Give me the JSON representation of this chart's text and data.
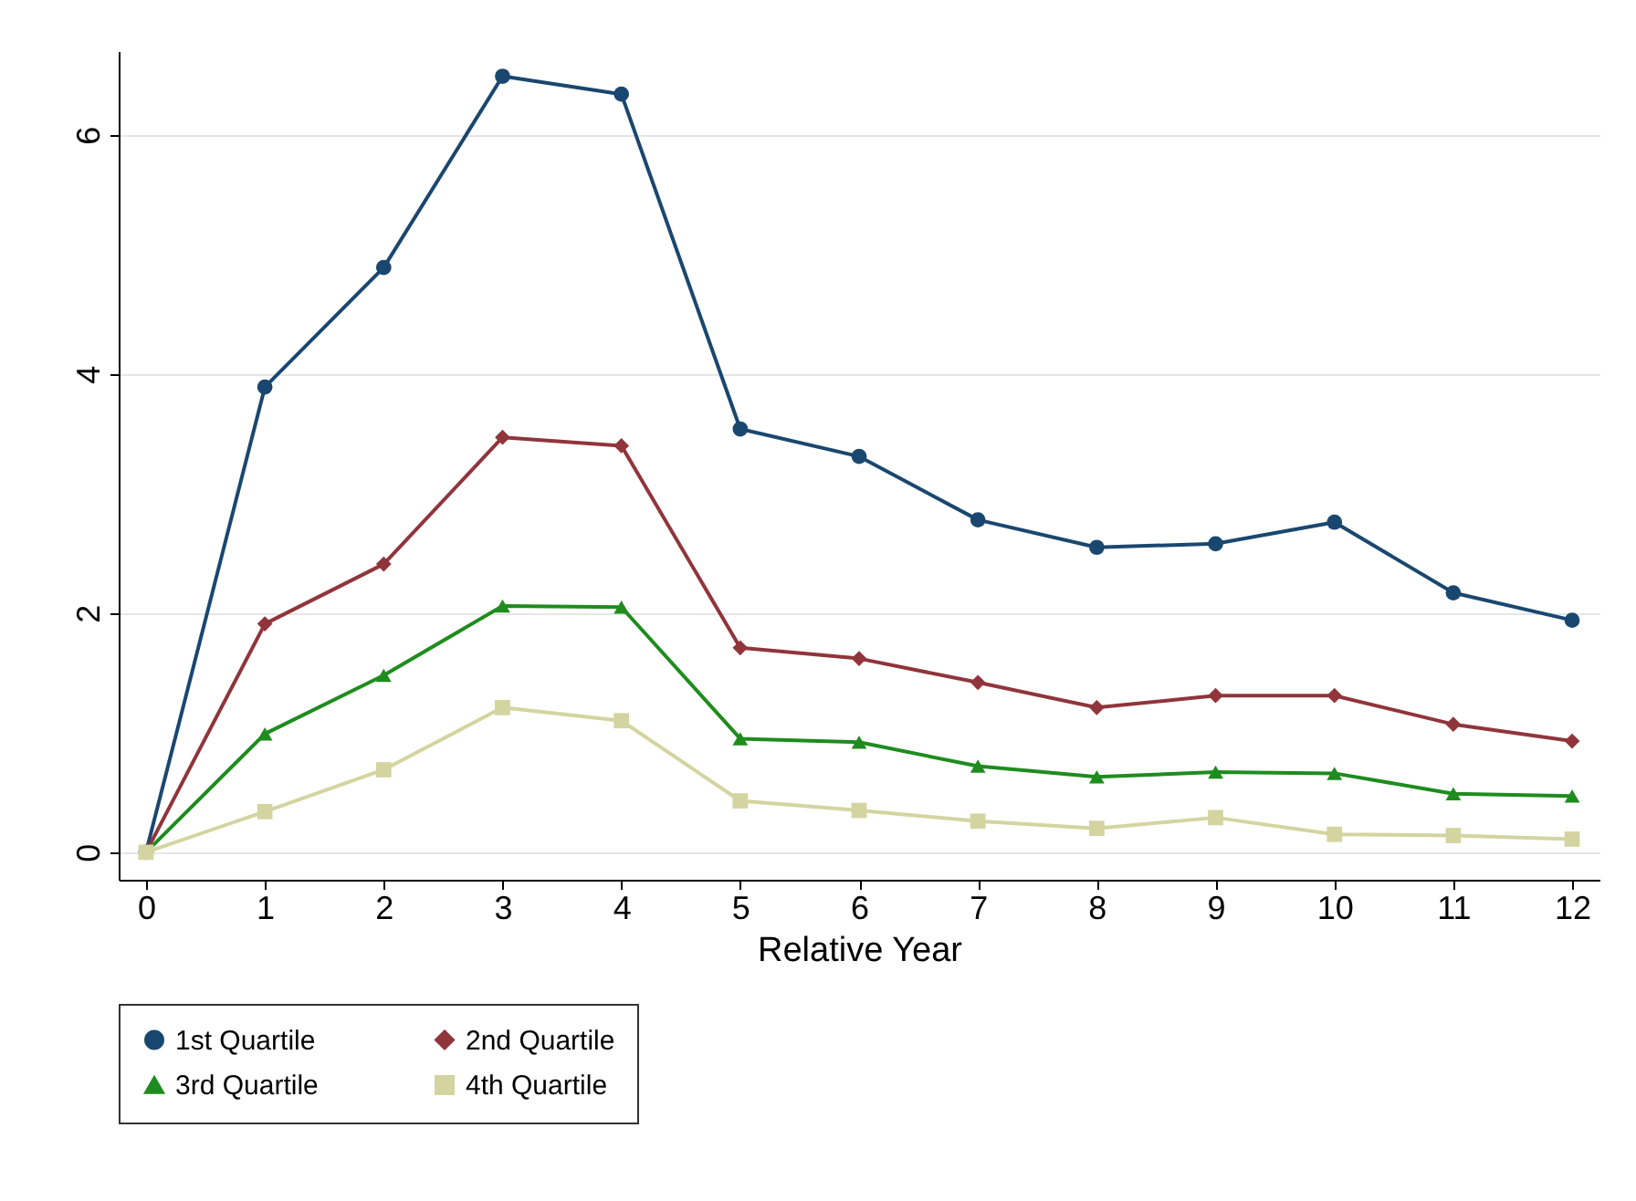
{
  "chart_data": {
    "type": "line",
    "xlabel": "Relative Year",
    "x": [
      0,
      1,
      2,
      3,
      4,
      5,
      6,
      7,
      8,
      9,
      10,
      11,
      12
    ],
    "xlim": [
      -0.23,
      12.23
    ],
    "xticks": [
      0,
      1,
      2,
      3,
      4,
      5,
      6,
      7,
      8,
      9,
      10,
      11,
      12
    ],
    "ylim": [
      -0.23,
      6.7
    ],
    "yticks": [
      0,
      2,
      4,
      6
    ],
    "grid": "y",
    "legend": "bottom",
    "series": [
      {
        "name": "1st Quartile",
        "color": "#1a476f",
        "marker": "circle",
        "values": [
          0,
          3.89,
          4.89,
          6.49,
          6.34,
          3.54,
          3.31,
          2.78,
          2.55,
          2.58,
          2.76,
          2.17,
          1.94
        ]
      },
      {
        "name": "2nd Quartile",
        "color": "#90353b",
        "marker": "diamond",
        "values": [
          0,
          1.91,
          2.41,
          3.47,
          3.4,
          1.71,
          1.62,
          1.42,
          1.21,
          1.31,
          1.31,
          1.07,
          0.93
        ]
      },
      {
        "name": "3rd Quartile",
        "color": "#1e8c1e",
        "marker": "triangle",
        "values": [
          0,
          0.99,
          1.48,
          2.06,
          2.05,
          0.95,
          0.92,
          0.72,
          0.63,
          0.67,
          0.66,
          0.49,
          0.47
        ]
      },
      {
        "name": "4th Quartile",
        "color": "#d4d4a0",
        "marker": "square",
        "values": [
          0,
          0.34,
          0.69,
          1.21,
          1.1,
          0.43,
          0.35,
          0.26,
          0.2,
          0.29,
          0.15,
          0.14,
          0.11
        ]
      }
    ]
  }
}
